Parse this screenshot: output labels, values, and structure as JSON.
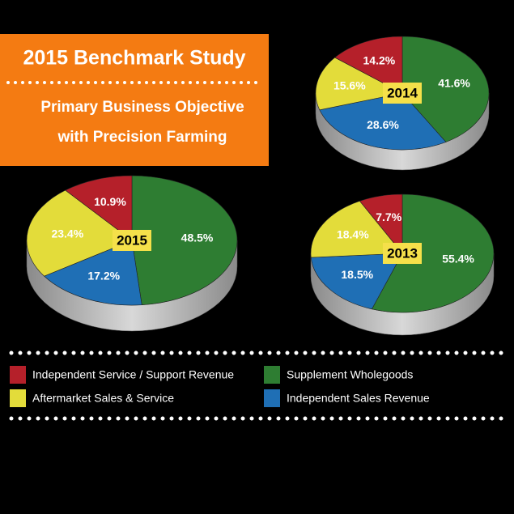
{
  "header": {
    "title": "2015 Benchmark Study",
    "subtitle": [
      "Primary Business Objective",
      "with Precision Farming"
    ]
  },
  "legend": [
    {
      "name": "Supplement Wholegoods",
      "color": "#2e7d32"
    },
    {
      "name": "Independent Sales Revenue",
      "color": "#1f6fb5"
    },
    {
      "name": "Aftermarket Sales & Service",
      "color": "#e3dc3a"
    },
    {
      "name": "Independent Service / Support Revenue",
      "color": "#b5202a"
    }
  ],
  "chart_data": [
    {
      "type": "pie",
      "label": "2015",
      "values": [
        48.5,
        17.2,
        23.4,
        10.9
      ],
      "value_labels": [
        "48.5%",
        "17.2%",
        "23.4%",
        "10.9%"
      ]
    },
    {
      "type": "pie",
      "label": "2014",
      "values": [
        41.6,
        28.6,
        15.6,
        14.2
      ],
      "value_labels": [
        "41.6%",
        "28.6%",
        "15.6%",
        "14.2%"
      ]
    },
    {
      "type": "pie",
      "label": "2013",
      "values": [
        55.4,
        18.5,
        18.4,
        7.7
      ],
      "value_labels": [
        "55.4%",
        "18.5%",
        "18.4%",
        "7.7%"
      ]
    }
  ]
}
